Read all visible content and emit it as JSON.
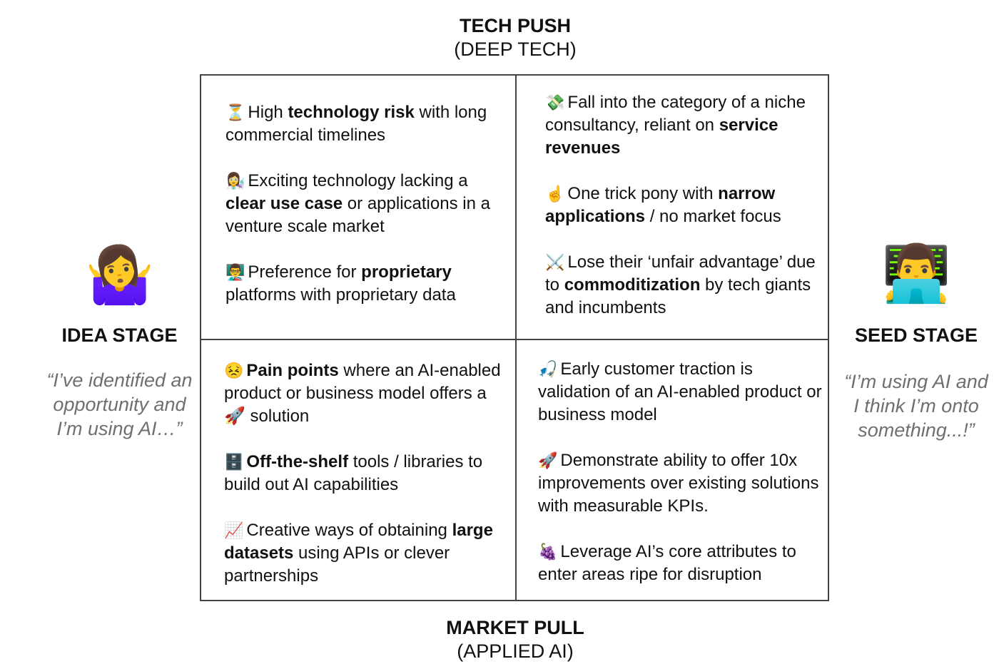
{
  "top_axis": {
    "title": "TECH PUSH",
    "subtitle": "(DEEP TECH)"
  },
  "bottom_axis": {
    "title": "MARKET PULL",
    "subtitle": "(APPLIED AI)"
  },
  "left_side": {
    "emoji": "🤷‍♀️",
    "stage": "IDEA STAGE",
    "quote_lines": [
      "“I’ve identified an",
      "opportunity and",
      "I’m using AI…”"
    ]
  },
  "right_side": {
    "emoji": "👨‍💻",
    "stage": "SEED STAGE",
    "quote_lines": [
      "“I’m using AI and",
      "I think I’m onto",
      "something...!”"
    ]
  },
  "quadrants": {
    "top_left": [
      {
        "icon": "⏳",
        "icon_name": "hourglass-icon",
        "parts": [
          {
            "t": "High ",
            "b": false
          },
          {
            "t": "technology risk",
            "b": true
          },
          {
            "t": " with long commercial timelines",
            "b": false
          }
        ]
      },
      {
        "icon": "👩‍🔬",
        "icon_name": "scientist-icon",
        "parts": [
          {
            "t": "Exciting technology lacking a ",
            "b": false
          },
          {
            "t": "clear use case",
            "b": true
          },
          {
            "t": " or applications in a venture scale market",
            "b": false
          }
        ]
      },
      {
        "icon": "👨‍🏫",
        "icon_name": "teacher-icon",
        "parts": [
          {
            "t": "Preference for ",
            "b": false
          },
          {
            "t": "proprietary",
            "b": true
          },
          {
            "t": " platforms with proprietary data",
            "b": false
          }
        ]
      }
    ],
    "top_right": [
      {
        "icon": "💸",
        "icon_name": "money-wings-icon",
        "parts": [
          {
            "t": "Fall into the category of a niche consultancy, reliant on ",
            "b": false
          },
          {
            "t": "service revenues",
            "b": true
          }
        ]
      },
      {
        "icon": "☝️",
        "icon_name": "index-finger-icon",
        "parts": [
          {
            "t": "One trick pony with ",
            "b": false
          },
          {
            "t": "narrow applications",
            "b": true
          },
          {
            "t": " / no market focus",
            "b": false
          }
        ]
      },
      {
        "icon": "⚔️",
        "icon_name": "crossed-swords-icon",
        "parts": [
          {
            "t": "Lose their ‘unfair advantage’ due to ",
            "b": false
          },
          {
            "t": "commoditization",
            "b": true
          },
          {
            "t": " by tech giants and incumbents",
            "b": false
          }
        ]
      }
    ],
    "bottom_left": [
      {
        "icon": "😣",
        "icon_name": "persevering-face-icon",
        "parts": [
          {
            "t": "Pain points",
            "b": true
          },
          {
            "t": " where an AI-enabled product or business model offers a 🚀 solution",
            "b": false
          }
        ]
      },
      {
        "icon": "🗄️",
        "icon_name": "file-cabinet-icon",
        "parts": [
          {
            "t": "Off-the-shelf",
            "b": true
          },
          {
            "t": " tools / libraries to build out AI capabilities",
            "b": false
          }
        ]
      },
      {
        "icon": "📈",
        "icon_name": "chart-increasing-icon",
        "parts": [
          {
            "t": "Creative ways of obtaining ",
            "b": false
          },
          {
            "t": "large datasets",
            "b": true
          },
          {
            "t": " using APIs or clever partnerships",
            "b": false
          }
        ]
      }
    ],
    "bottom_right": [
      {
        "icon": "🎣",
        "icon_name": "fishing-pole-icon",
        "parts": [
          {
            "t": "Early customer traction is validation of an AI-enabled product or business model",
            "b": false
          }
        ]
      },
      {
        "icon": "🚀",
        "icon_name": "rocket-icon",
        "parts": [
          {
            "t": "Demonstrate ability to offer 10x improvements over existing solutions with measurable KPIs.",
            "b": false
          }
        ]
      },
      {
        "icon": "🍇",
        "icon_name": "grapes-icon",
        "parts": [
          {
            "t": "Leverage AI’s core attributes to enter areas ripe for disruption",
            "b": false
          }
        ]
      }
    ]
  }
}
